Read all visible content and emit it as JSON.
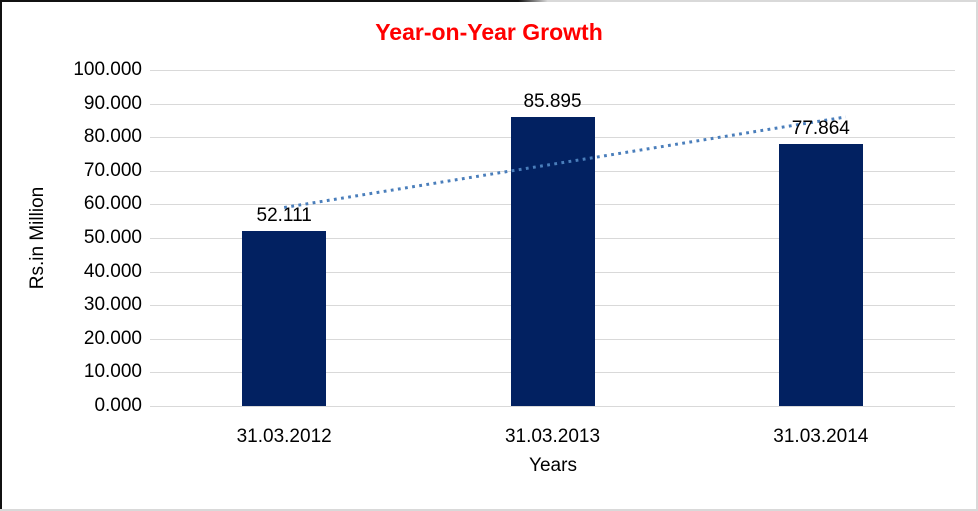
{
  "chart_data": {
    "type": "bar",
    "title": "Year-on-Year Growth",
    "categories": [
      "31.03.2012",
      "31.03.2013",
      "31.03.2014"
    ],
    "values": [
      52.111,
      85.895,
      77.864
    ],
    "data_labels": [
      "52.111",
      "85.895",
      "77.864"
    ],
    "xlabel": "Years",
    "ylabel": "Rs.in Million",
    "ylim": [
      0,
      100
    ],
    "y_tick_step": 10,
    "y_tick_labels": [
      "0.000",
      "10.000",
      "20.000",
      "30.000",
      "40.000",
      "50.000",
      "60.000",
      "70.000",
      "80.000",
      "90.000",
      "100.000"
    ],
    "grid": true,
    "legend": false,
    "trendline": {
      "type": "linear",
      "style": "dotted"
    }
  },
  "colors": {
    "title": "#ff0000",
    "bar": "#022161",
    "gridline": "#d9d9d9",
    "trendline": "#4a7ebb",
    "text": "#000000"
  }
}
